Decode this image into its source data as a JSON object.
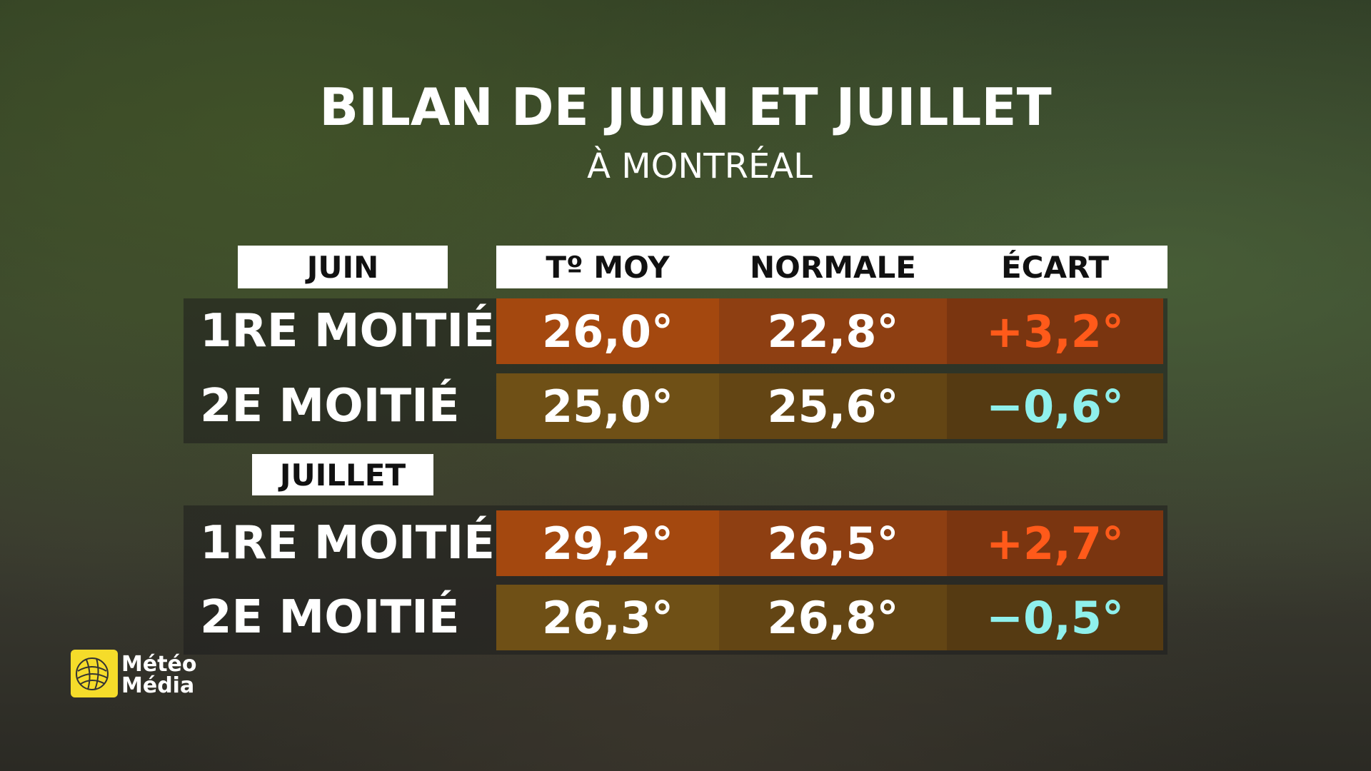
{
  "header": {
    "title": "BILAN DE JUIN ET JUILLET",
    "subtitle": "À MONTRÉAL"
  },
  "table": {
    "columns": [
      "Tº MOY",
      "NORMALE",
      "ÉCART"
    ],
    "sections": [
      {
        "label": "JUIN",
        "rows": [
          {
            "label": "1RE MOITIÉ",
            "cells": [
              "26,0°",
              "22,8°",
              "+3,2°"
            ]
          },
          {
            "label": "2E MOITIÉ",
            "cells": [
              "25,0°",
              "25,6°",
              "−0,6°"
            ]
          }
        ]
      },
      {
        "label": "JUILLET",
        "rows": [
          {
            "label": "1RE MOITIÉ",
            "cells": [
              "29,2°",
              "26,5°",
              "+2,7°"
            ]
          },
          {
            "label": "2E MOITIÉ",
            "cells": [
              "26,3°",
              "26,8°",
              "−0,5°"
            ]
          }
        ]
      }
    ]
  },
  "logo": {
    "line1": "Météo",
    "line2": "Média"
  }
}
